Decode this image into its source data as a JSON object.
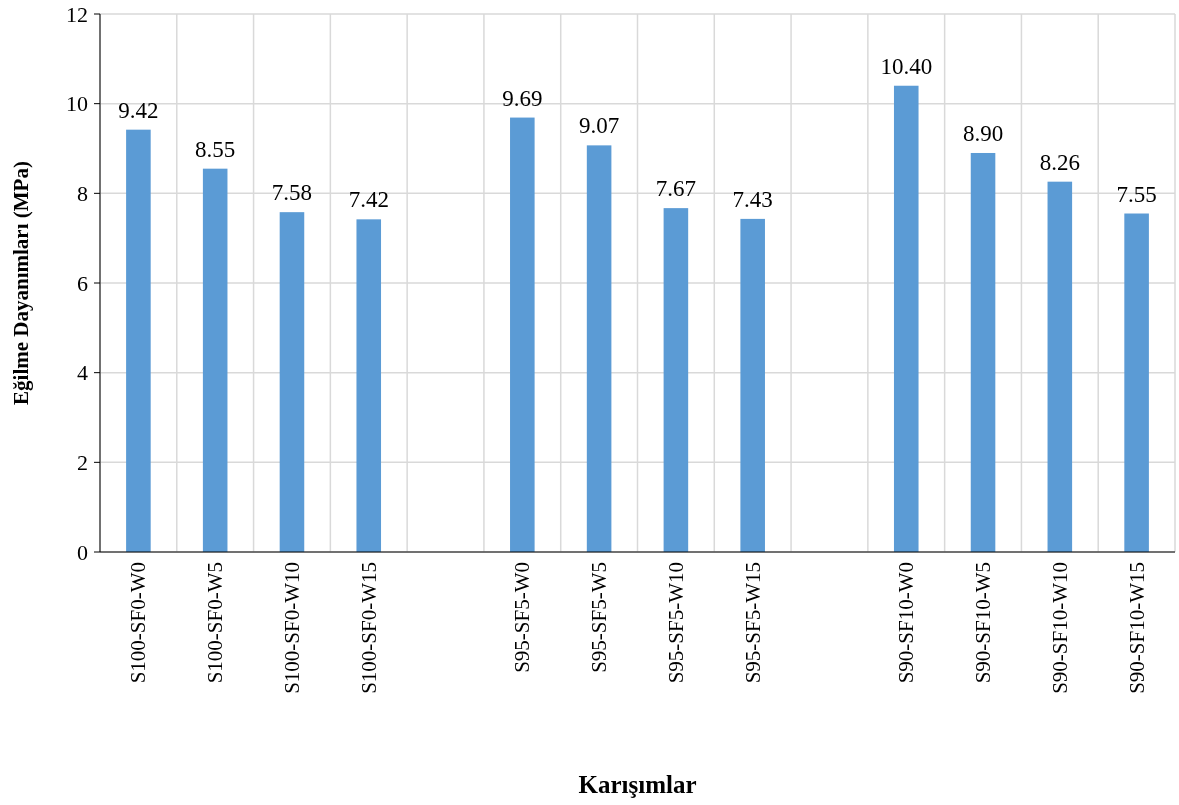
{
  "chart_data": {
    "type": "bar",
    "xlabel": "Karışımlar",
    "ylabel": "Eğilme Dayanımları (MPa)",
    "categories": [
      "S100-SF0-W0",
      "S100-SF0-W5",
      "S100-SF0-W10",
      "S100-SF0-W15",
      null,
      "S95-SF5-W0",
      "S95-SF5-W5",
      "S95-SF5-W10",
      "S95-SF5-W15",
      null,
      "S90-SF10-W0",
      "S90-SF10-W5",
      "S90-SF10-W10",
      "S90-SF10-W15"
    ],
    "values": [
      9.42,
      8.55,
      7.58,
      7.42,
      null,
      9.69,
      9.07,
      7.67,
      7.43,
      null,
      10.4,
      8.9,
      8.26,
      7.55
    ],
    "value_labels": [
      "9.42",
      "8.55",
      "7.58",
      "7.42",
      null,
      "9.69",
      "9.07",
      "7.67",
      "7.43",
      null,
      "10.40",
      "8.90",
      "8.26",
      "7.55"
    ],
    "color": "#5b9bd5",
    "ylim": [
      0,
      12
    ],
    "yticks": [
      0,
      2,
      4,
      6,
      8,
      10,
      12
    ],
    "grid": true
  }
}
